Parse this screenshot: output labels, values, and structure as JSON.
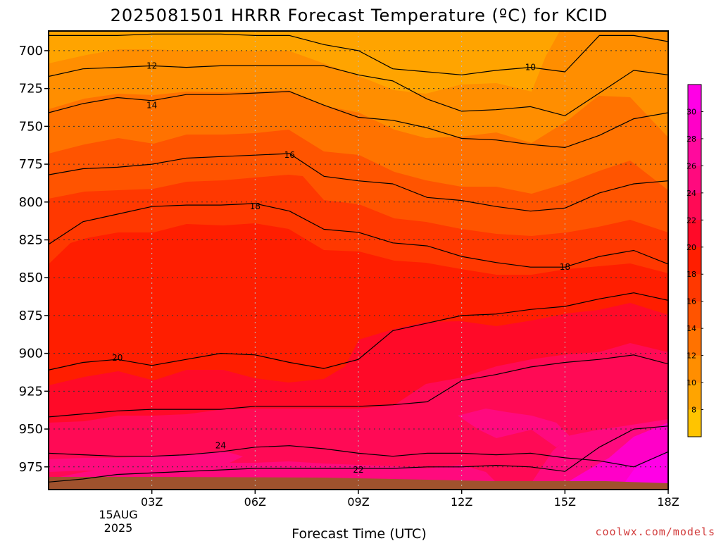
{
  "title": "2025081501 HRRR Forecast Temperature (ºC) for KCID",
  "credit": "coolwx.com/models",
  "chart_data": {
    "type": "heatmap",
    "title": "2025081501 HRRR Forecast Temperature (ºC) for KCID",
    "xlabel": "Forecast Time (UTC)",
    "ylabel": "",
    "x_ticks": [
      "03Z",
      "06Z",
      "09Z",
      "12Z",
      "15Z",
      "18Z"
    ],
    "x_date_labels": [
      "15AUG",
      "2025"
    ],
    "xlim_hours": [
      0,
      18
    ],
    "y_ticks": [
      700,
      725,
      750,
      775,
      800,
      825,
      850,
      875,
      900,
      925,
      950,
      975
    ],
    "ylim_hpa": [
      687,
      990
    ],
    "grid": "dotted",
    "colorbar_labels": [
      8,
      10,
      12,
      14,
      16,
      18,
      20,
      22,
      24,
      26,
      28,
      30
    ],
    "colorbar_colors": [
      "#ffc400",
      "#ffa400",
      "#ff8e00",
      "#ff7200",
      "#ff5400",
      "#ff3800",
      "#ff1e00",
      "#ff0a28",
      "#ff0a55",
      "#ff0a7e",
      "#ff0a9d",
      "#ff00c8",
      "#ff00e6"
    ],
    "contour_levels": [
      10,
      12,
      14,
      16,
      18,
      20,
      22,
      24
    ],
    "contours": [
      {
        "level": 10,
        "hours": [
          0,
          1,
          2,
          3,
          4,
          5,
          6,
          7,
          8,
          9,
          10,
          11,
          12,
          13,
          14,
          15,
          16,
          17,
          18
        ],
        "pressure": [
          690,
          690,
          690,
          689,
          689,
          689,
          690,
          690,
          696,
          700,
          712,
          714,
          716,
          713,
          711,
          714,
          690,
          690,
          694
        ]
      },
      {
        "level": 12,
        "hours": [
          0,
          1,
          2,
          3,
          4,
          5,
          6,
          7,
          8,
          9,
          10,
          11,
          12,
          13,
          14,
          15,
          16,
          17,
          18
        ],
        "pressure": [
          717,
          712,
          711,
          710,
          711,
          710,
          710,
          710,
          710,
          716,
          720,
          732,
          740,
          739,
          737,
          743,
          728,
          713,
          716
        ]
      },
      {
        "level": 14,
        "hours": [
          0,
          1,
          2,
          3,
          4,
          5,
          6,
          7,
          8,
          9,
          10,
          11,
          12,
          13,
          14,
          15,
          16,
          17,
          18
        ],
        "pressure": [
          741,
          735,
          731,
          733,
          729,
          729,
          728,
          727,
          736,
          744,
          746,
          751,
          758,
          759,
          762,
          764,
          756,
          745,
          741
        ]
      },
      {
        "level": 16,
        "hours": [
          0,
          1,
          2,
          3,
          4,
          5,
          6,
          7,
          8,
          9,
          10,
          11,
          12,
          13,
          14,
          15,
          16,
          17,
          18
        ],
        "pressure": [
          782,
          778,
          777,
          775,
          771,
          770,
          769,
          768,
          783,
          786,
          788,
          797,
          799,
          803,
          806,
          804,
          794,
          788,
          786
        ]
      },
      {
        "level": 18,
        "hours": [
          0,
          1,
          2,
          3,
          4,
          5,
          6,
          7,
          8,
          9,
          10,
          11,
          12,
          13,
          14,
          15,
          16,
          17,
          18
        ],
        "pressure": [
          828,
          813,
          808,
          803,
          802,
          802,
          801,
          806,
          818,
          820,
          827,
          829,
          836,
          840,
          843,
          843,
          836,
          832,
          841
        ]
      },
      {
        "level": 20,
        "hours": [
          0,
          1,
          2,
          3,
          4,
          5,
          6,
          7,
          8,
          9,
          10,
          11,
          12,
          13,
          14,
          15,
          16,
          17,
          18
        ],
        "pressure": [
          911,
          906,
          904,
          908,
          904,
          900,
          901,
          906,
          910,
          904,
          885,
          880,
          875,
          874,
          871,
          869,
          864,
          860,
          865
        ]
      },
      {
        "level": 22,
        "hours": [
          0,
          1,
          2,
          3,
          4,
          5,
          6,
          7,
          8,
          9,
          10,
          11,
          12,
          13,
          14,
          15,
          16,
          17,
          18
        ],
        "pressure": [
          942,
          940,
          938,
          937,
          937,
          937,
          935,
          935,
          935,
          935,
          934,
          932,
          918,
          914,
          909,
          906,
          904,
          901,
          907
        ]
      },
      {
        "level": 22,
        "hours": [
          0,
          1,
          2,
          3,
          4,
          5,
          6,
          7,
          8,
          9,
          10,
          11,
          12,
          13,
          14,
          15,
          16,
          17,
          18
        ],
        "pressure": [
          985,
          983,
          980,
          979,
          978,
          977,
          976,
          976,
          976,
          976,
          976,
          975,
          975,
          974,
          975,
          978,
          962,
          950,
          948
        ]
      },
      {
        "level": 24,
        "hours": [
          0,
          1,
          2,
          3,
          4,
          5,
          6,
          7,
          8,
          9,
          10,
          11,
          12,
          13,
          14,
          15,
          16,
          17,
          18
        ],
        "pressure": [
          966,
          967,
          968,
          968,
          967,
          965,
          962,
          961,
          963,
          966,
          968,
          966,
          966,
          967,
          966,
          969,
          971,
          975,
          965
        ]
      }
    ],
    "contour_labels": [
      {
        "text": "10",
        "hour": 14,
        "pressure": 711
      },
      {
        "text": "12",
        "hour": 3,
        "pressure": 710
      },
      {
        "text": "14",
        "hour": 3,
        "pressure": 736
      },
      {
        "text": "16",
        "hour": 7,
        "pressure": 769
      },
      {
        "text": "18",
        "hour": 6,
        "pressure": 803
      },
      {
        "text": "18",
        "hour": 15,
        "pressure": 843
      },
      {
        "text": "20",
        "hour": 2,
        "pressure": 903
      },
      {
        "text": "22",
        "hour": 9,
        "pressure": 977
      },
      {
        "text": "24",
        "hour": 5,
        "pressure": 961
      }
    ]
  }
}
